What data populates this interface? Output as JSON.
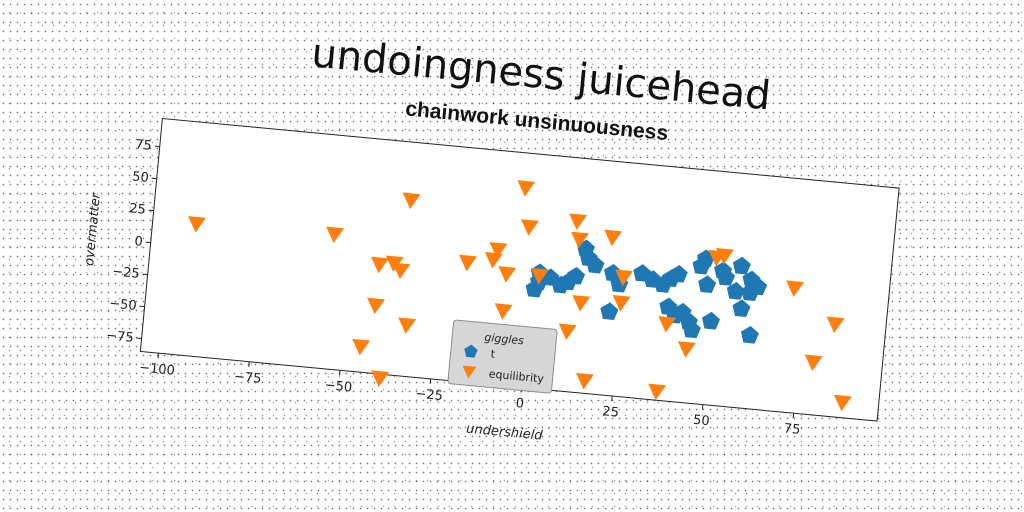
{
  "chart_data": {
    "type": "scatter",
    "title": "undoingness juicehead",
    "subtitle": "chainwork unsinuousness",
    "xlabel": "undershield",
    "ylabel": "overmatter",
    "xlim": [
      -105,
      98
    ],
    "ylim": [
      -85,
      97
    ],
    "xticks": [
      -100,
      -75,
      -50,
      -25,
      0,
      25,
      50,
      75
    ],
    "yticks": [
      -75,
      -50,
      -25,
      0,
      25,
      50,
      75
    ],
    "grid": false,
    "legend": {
      "title": "giggles",
      "placement": "lower-center"
    },
    "series": [
      {
        "name": "t",
        "marker": "pentagon",
        "color": "#1f77b4",
        "points": [
          [
            2,
            5
          ],
          [
            2,
            -2
          ],
          [
            1,
            -8
          ],
          [
            5,
            2
          ],
          [
            8,
            -3
          ],
          [
            10,
            0
          ],
          [
            12,
            5
          ],
          [
            15,
            20
          ],
          [
            14,
            27
          ],
          [
            17,
            15
          ],
          [
            22,
            10
          ],
          [
            24,
            2
          ],
          [
            22,
            -20
          ],
          [
            30,
            12
          ],
          [
            33,
            8
          ],
          [
            36,
            5
          ],
          [
            38,
            10
          ],
          [
            40,
            14
          ],
          [
            38,
            -12
          ],
          [
            40,
            -18
          ],
          [
            42,
            -15
          ],
          [
            44,
            -22
          ],
          [
            45,
            -28
          ],
          [
            46,
            22
          ],
          [
            47,
            28
          ],
          [
            50,
            -20
          ],
          [
            48,
            8
          ],
          [
            52,
            20
          ],
          [
            53,
            15
          ],
          [
            56,
            5
          ],
          [
            57,
            25
          ],
          [
            58,
            -8
          ],
          [
            60,
            15
          ],
          [
            60,
            5
          ],
          [
            62,
            10
          ],
          [
            61,
            -28
          ]
        ]
      },
      {
        "name": "equilibrity",
        "marker": "triangle-down",
        "color": "#ff7f0e",
        "points": [
          [
            -93,
            18
          ],
          [
            -55,
            20
          ],
          [
            -35,
            52
          ],
          [
            -42,
            0
          ],
          [
            -38,
            2
          ],
          [
            -36,
            -3
          ],
          [
            -42,
            -32
          ],
          [
            -33,
            -45
          ],
          [
            -45,
            -65
          ],
          [
            -39,
            -88
          ],
          [
            -18,
            8
          ],
          [
            -10,
            20
          ],
          [
            -11,
            12
          ],
          [
            -7,
            2
          ],
          [
            -7,
            -27
          ],
          [
            -4,
            70
          ],
          [
            -2,
            40
          ],
          [
            2,
            3
          ],
          [
            11,
            48
          ],
          [
            12,
            34
          ],
          [
            21,
            38
          ],
          [
            14,
            -15
          ],
          [
            25,
            8
          ],
          [
            25,
            -12
          ],
          [
            11,
            -38
          ],
          [
            17,
            -75
          ],
          [
            38,
            -25
          ],
          [
            37,
            -78
          ],
          [
            44,
            -43
          ],
          [
            50,
            30
          ],
          [
            52,
            32
          ],
          [
            72,
            12
          ],
          [
            79,
            -44
          ],
          [
            84,
            -13
          ],
          [
            88,
            -73
          ]
        ]
      }
    ]
  }
}
